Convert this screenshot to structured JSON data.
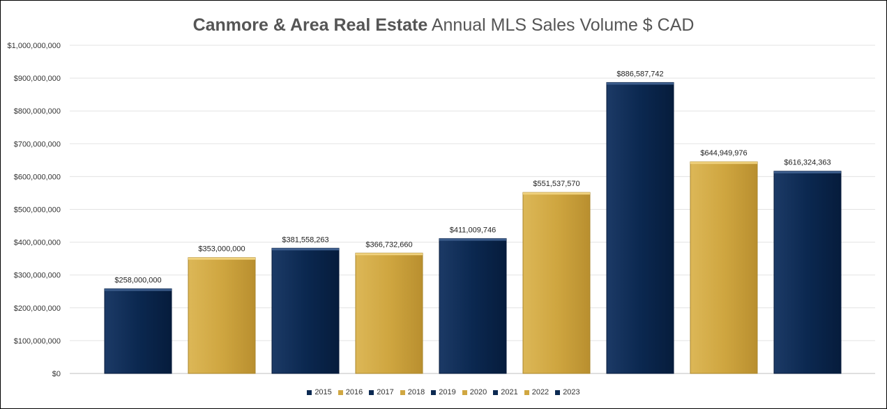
{
  "chart_data": {
    "type": "bar",
    "title_bold": "Canmore & Area Real Estate",
    "title_rest": " Annual MLS Sales Volume $ CAD",
    "categories": [
      "2015",
      "2016",
      "2017",
      "2018",
      "2019",
      "2020",
      "2021",
      "2022",
      "2023"
    ],
    "values": [
      258000000,
      353000000,
      381558263,
      366732660,
      411009746,
      551537570,
      886587742,
      644949976,
      616324363
    ],
    "data_labels": [
      "$258,000,000",
      "$353,000,000",
      "$381,558,263",
      "$366,732,660",
      "$411,009,746",
      "$551,537,570",
      "$886,587,742",
      "$644,949,976",
      "$616,324,363"
    ],
    "colors": [
      "#0c2a52",
      "#d0a742",
      "#0c2a52",
      "#d0a742",
      "#0c2a52",
      "#d0a742",
      "#0c2a52",
      "#d0a742",
      "#0c2a52"
    ],
    "ylim": [
      0,
      1000000000
    ],
    "y_ticks": [
      {
        "value": 0,
        "label": "$0"
      },
      {
        "value": 100000000,
        "label": "$100,000,000"
      },
      {
        "value": 200000000,
        "label": "$200,000,000"
      },
      {
        "value": 300000000,
        "label": "$300,000,000"
      },
      {
        "value": 400000000,
        "label": "$400,000,000"
      },
      {
        "value": 500000000,
        "label": "$500,000,000"
      },
      {
        "value": 600000000,
        "label": "$600,000,000"
      },
      {
        "value": 700000000,
        "label": "$700,000,000"
      },
      {
        "value": 800000000,
        "label": "$800,000,000"
      },
      {
        "value": 900000000,
        "label": "$900,000,000"
      },
      {
        "value": 1000000000,
        "label": "$1,000,000,000"
      }
    ],
    "grid": true,
    "legend_position": "bottom",
    "xlabel": "",
    "ylabel": ""
  }
}
